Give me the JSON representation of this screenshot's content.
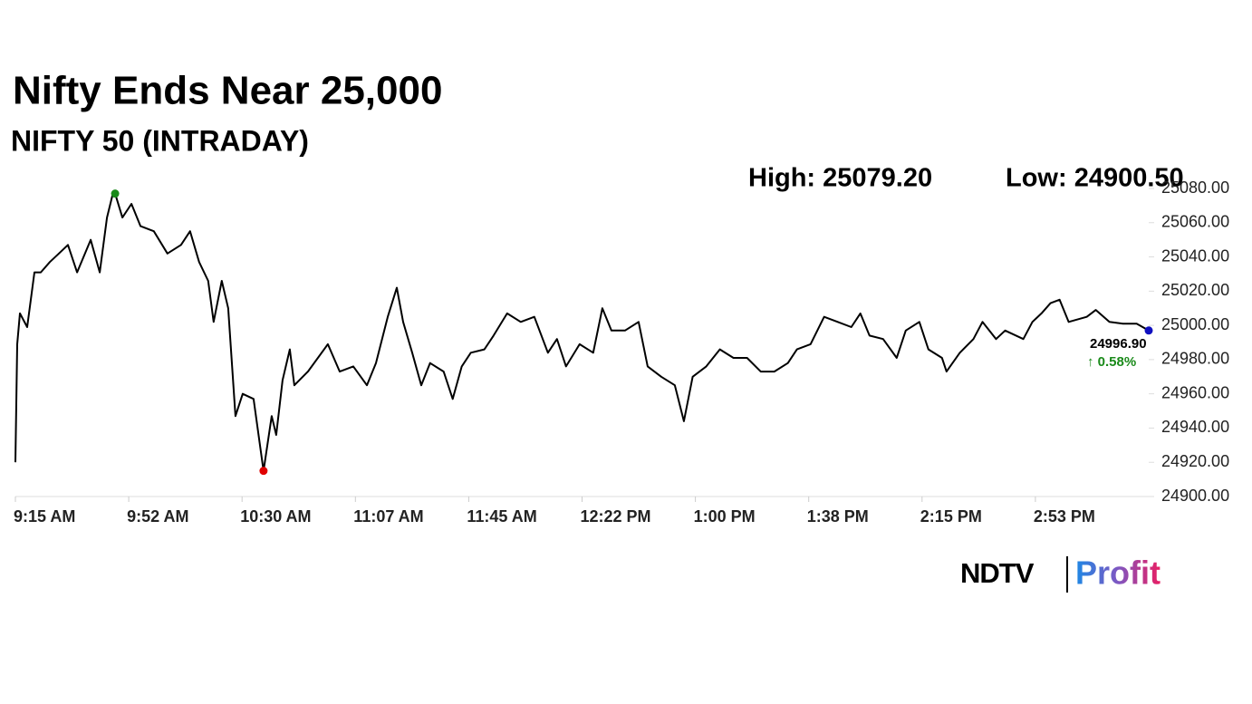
{
  "chart_data": {
    "type": "line",
    "title": "Nifty Ends Near 25,000",
    "subtitle": "NIFTY 50 (INTRADAY)",
    "high_label": "High: 25079.20",
    "low_label": "Low: 24900.50",
    "last_label": "24996.90",
    "change_label": "↑ 0.58%",
    "logo": {
      "left": "NDTV",
      "right": "Profit"
    },
    "x": [
      0,
      0.6,
      1.5,
      3.9,
      6.3,
      8.4,
      11.4,
      14.4,
      17.4,
      20.4,
      24.9,
      27.9,
      30.3,
      32.1,
      33,
      35.4,
      38.4,
      41.4,
      45.8,
      50.3,
      54.8,
      57.8,
      60.8,
      63.8,
      65.6,
      68.3,
      70.4,
      72.8,
      75.2,
      78.8,
      82.1,
      84.8,
      86.3,
      88.4,
      90.8,
      92.3,
      96.8,
      103.4,
      107.3,
      111.8,
      116.3,
      119.3,
      123.2,
      126.2,
      128.3,
      131.3,
      134.3,
      137.2,
      141.7,
      144.7,
      147.7,
      150.7,
      155.2,
      158.2,
      162.7,
      167.2,
      171.7,
      176.2,
      179.2,
      182.2,
      186.7,
      191.2,
      194.2,
      197.2,
      201.7,
      206.2,
      209.2,
      213.7,
      218.2,
      221.2,
      224.1,
      228.6,
      233.1,
      237.6,
      242.1,
      246.6,
      251.1,
      255.6,
      258.6,
      263.1,
      267.6,
      272.1,
      276.6,
      279.6,
      282.6,
      287.1,
      291.6,
      294.6,
      299.1,
      302.1,
      306.6,
      308.1,
      312.5,
      317,
      320,
      324.5,
      327.5,
      333.5,
      336.5,
      339.5,
      342.5,
      345.5,
      348.5,
      354.5,
      357.5,
      362,
      366.5,
      371,
      375
    ],
    "series": [
      {
        "name": "NIFTY 50",
        "color": "#000000",
        "values": [
          24920,
          24989,
          25007,
          24999,
          25031,
          25031,
          25037,
          25042,
          25047,
          25031,
          25050,
          25031,
          25063,
          25076,
          25077,
          25063,
          25071,
          25058,
          25055,
          25042,
          25047,
          25055,
          25037,
          25026,
          25002,
          25026,
          25010,
          24947,
          24960,
          24957,
          24915,
          24947,
          24936,
          24968,
          24986,
          24965,
          24973,
          24989,
          24973,
          24976,
          24965,
          24978,
          25005,
          25022,
          25002,
          24984,
          24965,
          24978,
          24973,
          24957,
          24976,
          24984,
          24986,
          24994,
          25007,
          25002,
          25005,
          24984,
          24992,
          24976,
          24989,
          24984,
          25010,
          24997,
          24997,
          25002,
          24976,
          24970,
          24965,
          24944,
          24970,
          24976,
          24986,
          24981,
          24981,
          24973,
          24973,
          24978,
          24986,
          24989,
          25005,
          25002,
          24999,
          25007,
          24994,
          24992,
          24981,
          24997,
          25002,
          24986,
          24981,
          24973,
          24984,
          24992,
          25002,
          24992,
          24997,
          24992,
          25002,
          25007,
          25013,
          25015,
          25002,
          25005,
          25009,
          25002,
          25001,
          25001,
          24997
        ]
      }
    ],
    "markers": [
      {
        "index": 14,
        "color": "#1a8a1a"
      },
      {
        "index": 30,
        "color": "#e00000"
      },
      {
        "index": 108,
        "color": "#1010c0"
      }
    ],
    "xlim": [
      0,
      375
    ],
    "xticks": [
      {
        "value": 0,
        "label": "9:15 AM"
      },
      {
        "value": 37.5,
        "label": "9:52 AM"
      },
      {
        "value": 75,
        "label": "10:30 AM"
      },
      {
        "value": 112.5,
        "label": "11:07 AM"
      },
      {
        "value": 150,
        "label": "11:45 AM"
      },
      {
        "value": 187.5,
        "label": "12:22 PM"
      },
      {
        "value": 225,
        "label": "1:00 PM"
      },
      {
        "value": 262.5,
        "label": "1:38 PM"
      },
      {
        "value": 300,
        "label": "2:15 PM"
      },
      {
        "value": 337.5,
        "label": "2:53 PM"
      }
    ],
    "ylim": [
      24900,
      25080
    ],
    "yticks": [
      {
        "value": 24900,
        "label": "24900.00"
      },
      {
        "value": 24920,
        "label": "24920.00"
      },
      {
        "value": 24940,
        "label": "24940.00"
      },
      {
        "value": 24960,
        "label": "24960.00"
      },
      {
        "value": 24980,
        "label": "24980.00"
      },
      {
        "value": 25000,
        "label": "25000.00"
      },
      {
        "value": 25020,
        "label": "25020.00"
      },
      {
        "value": 25040,
        "label": "25040.00"
      },
      {
        "value": 25060,
        "label": "25060.00"
      },
      {
        "value": 25080,
        "label": "25080.00"
      }
    ]
  }
}
